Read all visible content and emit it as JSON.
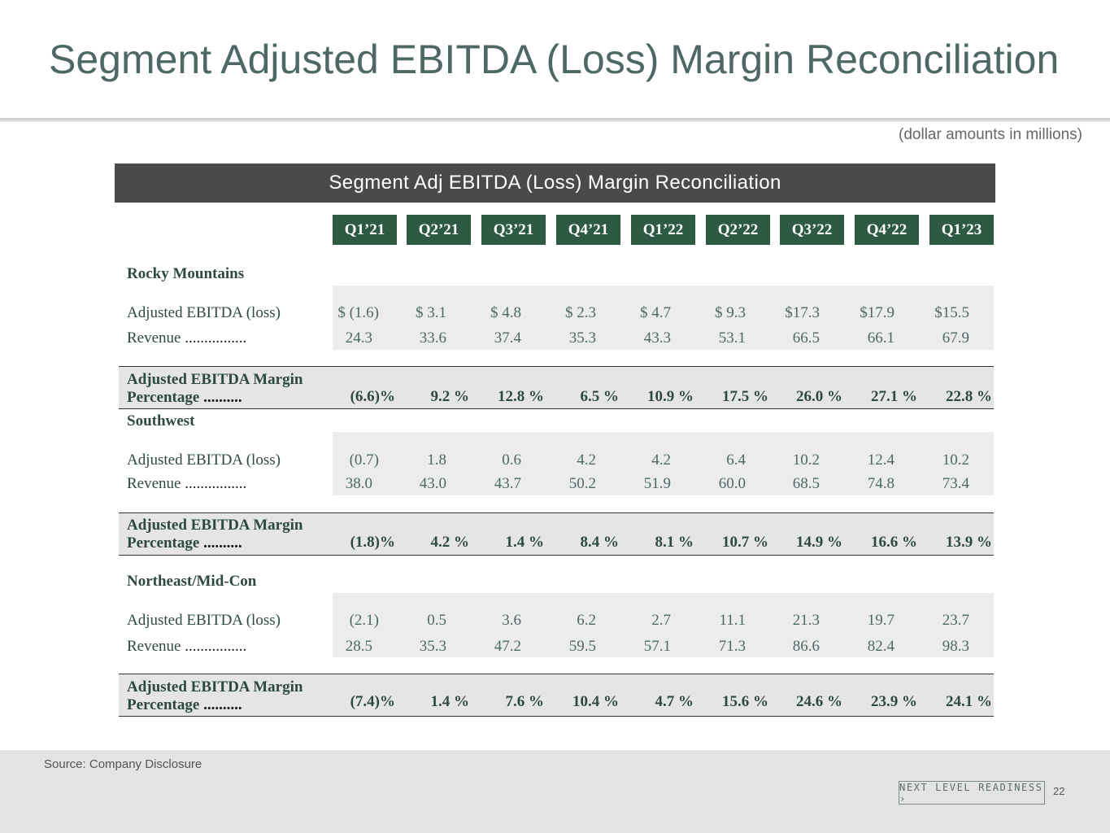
{
  "title": "Segment Adjusted EBITDA (Loss) Margin Reconciliation",
  "units_note": "(dollar amounts in millions)",
  "table_title": "Segment Adj EBITDA (Loss) Margin Reconciliation",
  "quarters": [
    "Q1’21",
    "Q2’21",
    "Q3’21",
    "Q4’21",
    "Q1’22",
    "Q2’22",
    "Q3’22",
    "Q4’22",
    "Q1’23"
  ],
  "labels": {
    "ebitda": "Adjusted EBITDA (loss)",
    "revenue": "Revenue",
    "revenue_dots": "................",
    "margin_line1": "Adjusted EBITDA Margin",
    "margin_line2": "Percentage",
    "margin_dots": ".........."
  },
  "segments": [
    {
      "name": "Rocky Mountains",
      "ebitda": [
        "$ (1.6)",
        "$  3.1",
        "$  4.8",
        "$  2.3",
        "$  4.7",
        "$  9.3",
        "$17.3",
        "$17.9",
        "$15.5"
      ],
      "revenue": [
        "24.3",
        "33.6",
        "37.4",
        "35.3",
        "43.3",
        "53.1",
        "66.5",
        "66.1",
        "67.9"
      ],
      "margin": [
        "(6.6)%",
        "9.2 %",
        "12.8 %",
        "6.5 %",
        "10.9 %",
        "17.5 %",
        "26.0 %",
        "27.1 %",
        "22.8 %"
      ]
    },
    {
      "name": "Southwest",
      "ebitda": [
        "(0.7)",
        "1.8",
        "0.6",
        "4.2",
        "4.2",
        "6.4",
        "10.2",
        "12.4",
        "10.2"
      ],
      "revenue": [
        "38.0",
        "43.0",
        "43.7",
        "50.2",
        "51.9",
        "60.0",
        "68.5",
        "74.8",
        "73.4"
      ],
      "margin": [
        "(1.8)%",
        "4.2 %",
        "1.4 %",
        "8.4 %",
        "8.1 %",
        "10.7 %",
        "14.9 %",
        "16.6 %",
        "13.9 %"
      ]
    },
    {
      "name": "Northeast/Mid-Con",
      "ebitda": [
        "(2.1)",
        "0.5",
        "3.6",
        "6.2",
        "2.7",
        "11.1",
        "21.3",
        "19.7",
        "23.7"
      ],
      "revenue": [
        "28.5",
        "35.3",
        "47.2",
        "59.5",
        "57.1",
        "71.3",
        "86.6",
        "82.4",
        "98.3"
      ],
      "margin": [
        "(7.4)%",
        "1.4 %",
        "7.6 %",
        "10.4 %",
        "4.7 %",
        "15.6 %",
        "24.6 %",
        "23.9 %",
        "24.1 %"
      ]
    }
  ],
  "footer": {
    "source": "Source: Company Disclosure",
    "brand": "NEXT LEVEL READINESS ›",
    "page_number": "22"
  }
}
